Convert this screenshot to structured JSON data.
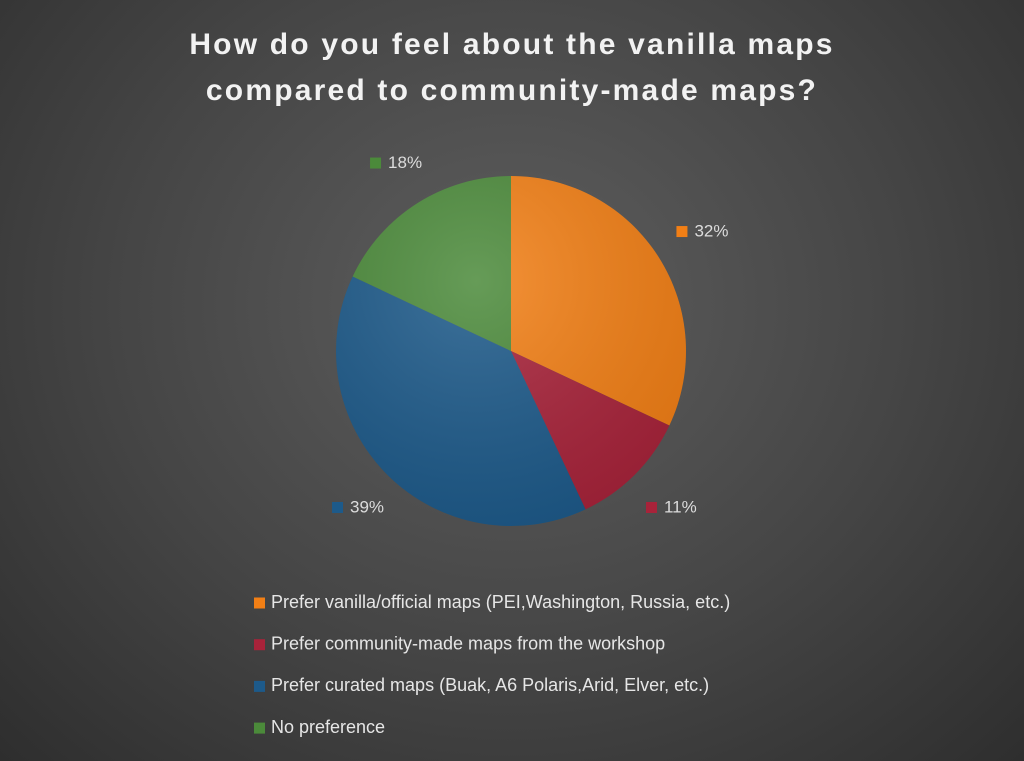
{
  "chart_data": {
    "type": "pie",
    "title": "How do you feel about the vanilla maps compared to community-made maps?",
    "categories": [
      "Prefer vanilla/official maps (PEI,Washington, Russia, etc.)",
      "Prefer community-made maps from the workshop",
      "Prefer curated maps (Buak, A6 Polaris,Arid, Elver, etc.)",
      "No preference"
    ],
    "values": [
      32,
      11,
      39,
      18
    ],
    "value_labels": [
      "32%",
      "11%",
      "39%",
      "18%"
    ],
    "colors": [
      "#f27f15",
      "#a8233a",
      "#1d5a8a",
      "#4b8a3a"
    ],
    "legend": "bottom"
  }
}
